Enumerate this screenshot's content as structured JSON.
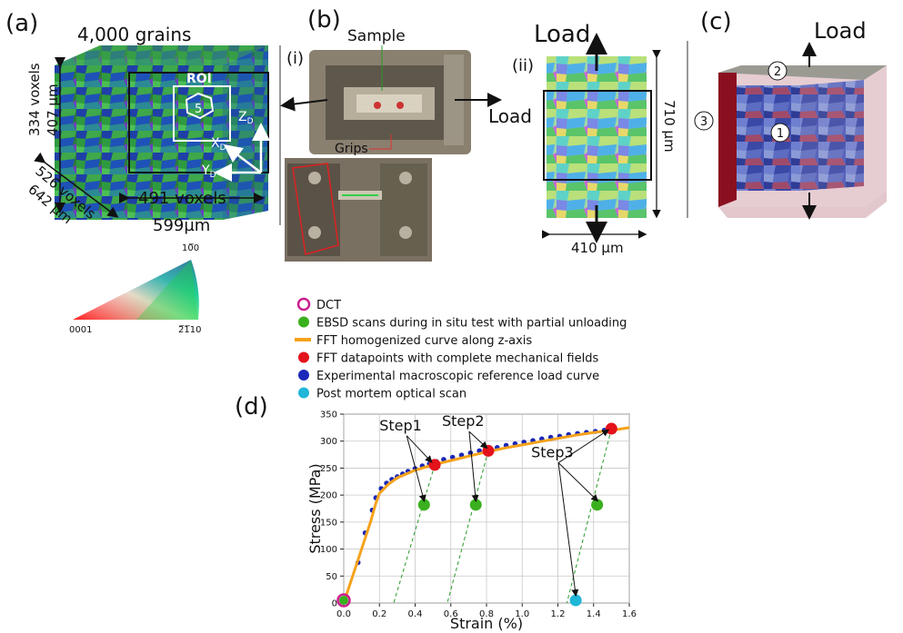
{
  "colors": {
    "accent_orange": "#f5a21b",
    "dct_magenta": "#cc1f8e",
    "ebsd_green": "#3ab01e",
    "fft_red": "#e3121b",
    "exp_blue": "#1a27b8",
    "postmortem_cyan": "#1fb6d8",
    "step_arrow_green": "#2a9a2a"
  },
  "panel_a": {
    "label": "(a)",
    "title": "4,000 grains",
    "roi": "ROI",
    "grain_id": "5",
    "dim_z_voxels": "334 voxels",
    "dim_z_um": "407 µm",
    "dim_y_voxels": "526 voxels",
    "dim_y_um": "642 µm",
    "dim_x_voxels": "491 voxels",
    "dim_x_um": "599µm",
    "axis_z": "Z",
    "axis_x": "X",
    "axis_y": "Y",
    "axis_sub": "D",
    "ipf_top": "10̅0",
    "ipf_left": "0001",
    "ipf_right": "2̅1̅10"
  },
  "panel_b": {
    "label": "(b)",
    "sub_i": "(i)",
    "sub_ii": "(ii)",
    "sample": "Sample",
    "grips": "Grips",
    "load_left": "Load",
    "load_top": "Load",
    "width_label": "410 µm",
    "height_label": "710 µm"
  },
  "panel_c": {
    "label": "(c)",
    "load": "Load",
    "marker1": "1",
    "marker2": "2",
    "marker3": "3"
  },
  "legend": [
    {
      "text": "DCT",
      "marker": "ring",
      "color": "#cc1f8e"
    },
    {
      "text": "EBSD scans during in situ test with partial unloading",
      "marker": "dot",
      "color": "#3ab01e"
    },
    {
      "text": "FFT homogenized curve along z-axis",
      "marker": "line",
      "color": "#f5a21b"
    },
    {
      "text": "FFT datapoints with complete mechanical fields",
      "marker": "dot",
      "color": "#e3121b"
    },
    {
      "text": "Experimental macroscopic reference load curve",
      "marker": "dot",
      "color": "#1a27b8"
    },
    {
      "text": "Post mortem optical scan",
      "marker": "dot",
      "color": "#1fb6d8"
    }
  ],
  "panel_d": {
    "label": "(d)"
  },
  "chart_data": {
    "type": "scatter",
    "xlabel": "Strain (%)",
    "ylabel": "Stress (MPa)",
    "xlim": [
      0,
      1.6
    ],
    "ylim": [
      0,
      350
    ],
    "xticks": [
      "0.0",
      "0.2",
      "0.4",
      "0.6",
      "0.8",
      "1.0",
      "1.2",
      "1.4",
      "1.6"
    ],
    "yticks": [
      "0",
      "50",
      "100",
      "150",
      "200",
      "250",
      "300",
      "350"
    ],
    "grid": true,
    "fft_curve": {
      "x": [
        0,
        0.05,
        0.1,
        0.15,
        0.18,
        0.2,
        0.25,
        0.3,
        0.4,
        0.5,
        0.6,
        0.7,
        0.8,
        0.9,
        1.0,
        1.1,
        1.2,
        1.3,
        1.4,
        1.5,
        1.6
      ],
      "y": [
        0,
        50,
        100,
        150,
        185,
        203,
        220,
        232,
        246,
        256,
        264,
        272,
        280,
        287,
        293,
        299,
        305,
        311,
        316,
        320,
        325
      ]
    },
    "experimental": {
      "x": [
        0.08,
        0.12,
        0.16,
        0.18,
        0.21,
        0.24,
        0.27,
        0.3,
        0.33,
        0.36,
        0.4,
        0.44,
        0.48,
        0.52,
        0.56,
        0.61,
        0.66,
        0.71,
        0.76,
        0.81,
        0.86,
        0.91,
        0.96,
        1.01,
        1.06,
        1.11,
        1.16,
        1.21,
        1.26,
        1.31,
        1.36,
        1.41,
        1.46
      ],
      "y": [
        75,
        130,
        172,
        195,
        212,
        222,
        229,
        234,
        239,
        244,
        249,
        254,
        258,
        262,
        266,
        270,
        274,
        278,
        282,
        285,
        288,
        292,
        295,
        298,
        301,
        304,
        307,
        309,
        312,
        314,
        316,
        318,
        320
      ]
    },
    "fft_points": {
      "x": [
        0.51,
        0.81,
        1.5
      ],
      "y": [
        256,
        282,
        323
      ]
    },
    "ebsd_points": {
      "x": [
        0.45,
        0.74,
        1.42
      ],
      "y": [
        182,
        182,
        182
      ]
    },
    "unload_lines": [
      {
        "x": [
          0.51,
          0.28
        ],
        "y": [
          256,
          0
        ]
      },
      {
        "x": [
          0.81,
          0.58
        ],
        "y": [
          282,
          0
        ]
      },
      {
        "x": [
          1.5,
          1.25
        ],
        "y": [
          323,
          0
        ]
      }
    ],
    "dct_point": {
      "x": 0.0,
      "y": 5
    },
    "post_mortem_point": {
      "x": 1.3,
      "y": 5
    },
    "annotations": [
      {
        "text": "Step1",
        "tx": 0.2,
        "ty": 320,
        "targets": [
          [
            0.45,
            190
          ],
          [
            0.49,
            262
          ]
        ]
      },
      {
        "text": "Step2",
        "tx": 0.55,
        "ty": 328,
        "targets": [
          [
            0.74,
            190
          ],
          [
            0.8,
            288
          ]
        ]
      },
      {
        "text": "Step3",
        "tx": 1.05,
        "ty": 270,
        "targets": [
          [
            1.42,
            190
          ],
          [
            1.48,
            320
          ],
          [
            1.3,
            15
          ]
        ]
      }
    ]
  }
}
